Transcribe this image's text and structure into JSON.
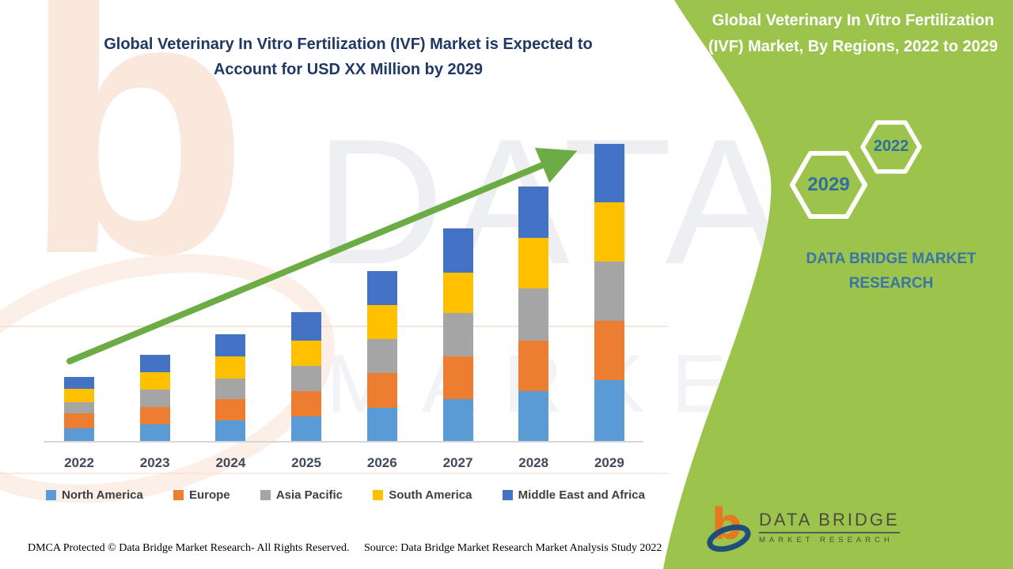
{
  "page": {
    "main_title_line1": "Global Veterinary In Vitro Fertilization (IVF) Market is Expected to",
    "main_title_line2": "Account for USD XX Million by 2029"
  },
  "side_panel": {
    "title": "Global Veterinary In Vitro Fertilization (IVF) Market, By Regions, 2022 to 2029",
    "brand_caption": "DATA BRIDGE MARKET RESEARCH",
    "hexagon_large_year": "2029",
    "hexagon_small_year": "2022",
    "background_color": "#9CC44D"
  },
  "chart_data": {
    "type": "bar",
    "stacked": true,
    "title": "Global Veterinary In Vitro Fertilization (IVF) Market is Expected to Account for USD XX Million by 2029",
    "xlabel": "",
    "ylabel": "",
    "grid": false,
    "legend_position": "bottom",
    "values_note": "Y axis is unlabeled in the source image; values are relative stacked-segment heights (pixels) read from the chart",
    "categories": [
      "2022",
      "2023",
      "2024",
      "2025",
      "2026",
      "2027",
      "2028",
      "2029"
    ],
    "series": [
      {
        "name": "North America",
        "color": "#5B9BD5",
        "values": [
          16,
          21,
          26,
          31,
          42,
          53,
          63,
          77
        ]
      },
      {
        "name": "Europe",
        "color": "#ED7D31",
        "values": [
          19,
          22,
          27,
          32,
          44,
          54,
          64,
          75
        ]
      },
      {
        "name": "Asia Pacific",
        "color": "#A5A5A5",
        "values": [
          14,
          22,
          26,
          32,
          43,
          55,
          66,
          75
        ]
      },
      {
        "name": "South America",
        "color": "#FFC000",
        "values": [
          17,
          22,
          28,
          32,
          43,
          51,
          64,
          75
        ]
      },
      {
        "name": "Middle East and Africa",
        "color": "#4472C4",
        "values": [
          15,
          22,
          28,
          36,
          43,
          56,
          65,
          74
        ]
      }
    ],
    "totals": [
      81,
      109,
      135,
      163,
      215,
      269,
      322,
      376
    ],
    "trend_arrow": true,
    "trend_arrow_color": "#6BAC44"
  },
  "footer": {
    "dmca": "DMCA Protected © Data Bridge Market Research- All Rights Reserved.",
    "source": "Source: Data Bridge Market Research Market Analysis Study 2022"
  },
  "logo": {
    "title": "DATA BRIDGE",
    "subtitle": "MARKET RESEARCH",
    "glyph": "b"
  },
  "watermark": {
    "glyph": "b",
    "text_line1": "DATA BRIDGE",
    "text_line2": "MARKET RESEARCH"
  }
}
